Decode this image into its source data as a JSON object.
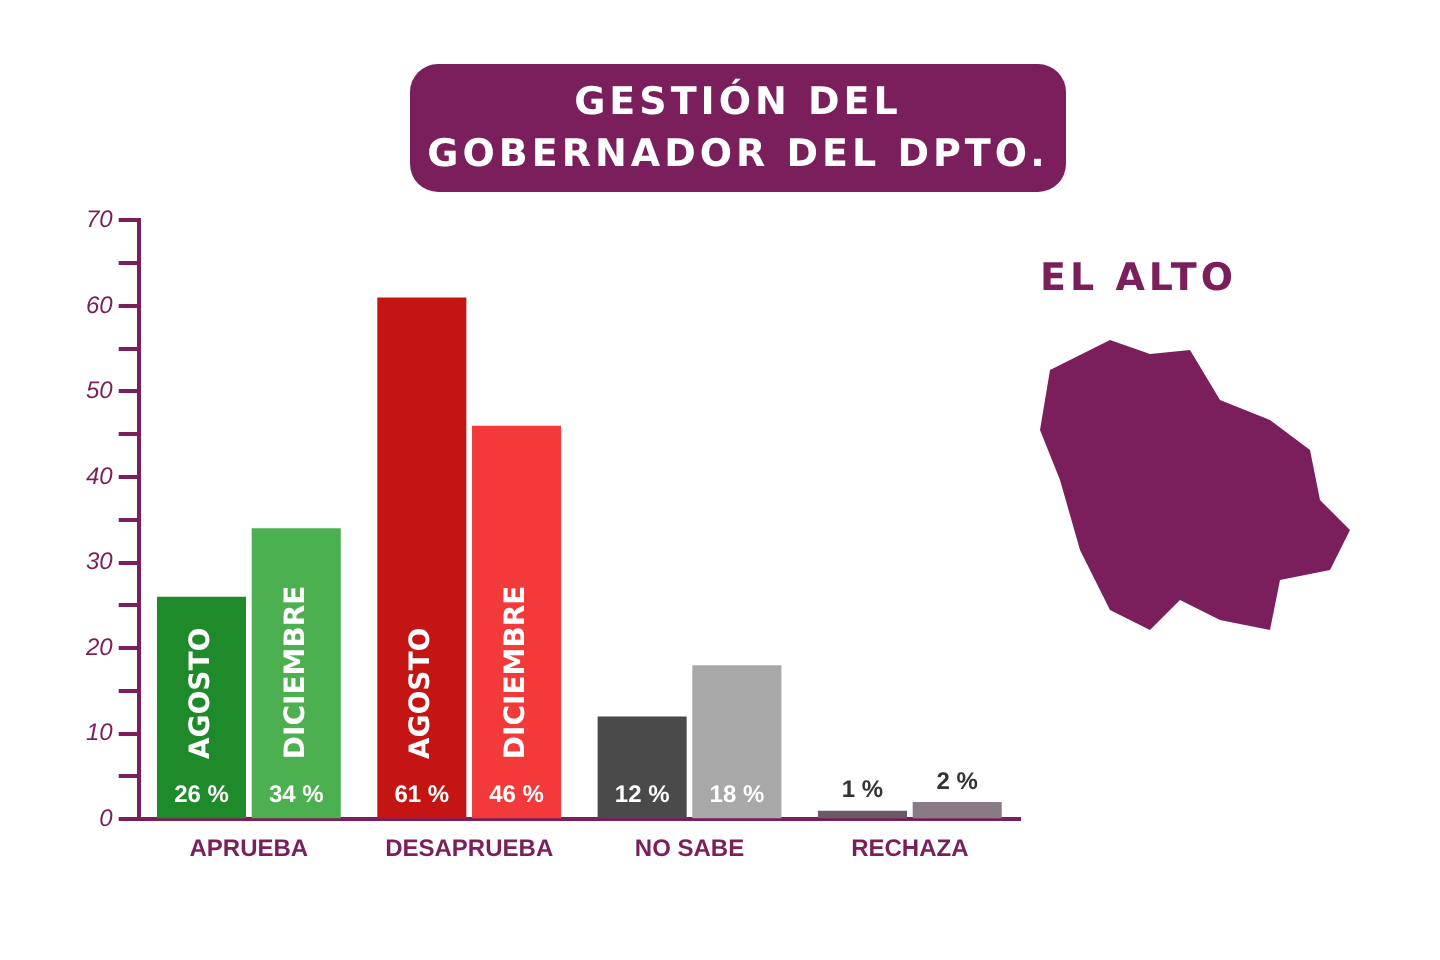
{
  "chart_data": {
    "type": "bar",
    "title": "GESTIÓN DEL GOBERNADOR DEL DPTO.",
    "annotations": [
      "EL ALTO"
    ],
    "categories": [
      "APRUEBA",
      "DESAPRUEBA",
      "NO SABE",
      "RECHAZA"
    ],
    "series": [
      {
        "name": "AGOSTO",
        "colors": [
          "#1e8a2a",
          "#c41414",
          "#4a4a4a",
          "#6a5a66"
        ],
        "values": [
          26,
          61,
          12,
          1
        ],
        "value_labels": [
          "26 %",
          "61 %",
          "12 %",
          "1 %"
        ]
      },
      {
        "name": "DICIEMBRE",
        "colors": [
          "#4caf50",
          "#f23a3a",
          "#a8a8a8",
          "#8a7a86"
        ],
        "values": [
          34,
          46,
          18,
          2
        ],
        "value_labels": [
          "34 %",
          "46 %",
          "18 %",
          "2 %"
        ]
      }
    ],
    "ylim": [
      0,
      70
    ],
    "yticks": [
      0,
      {
        "value": 5,
        "label": null
      },
      10,
      {
        "value": 15,
        "label": null
      },
      20,
      {
        "value": 25,
        "label": null
      },
      30,
      {
        "value": 35,
        "label": null
      },
      40,
      {
        "value": 45,
        "label": null
      },
      50,
      {
        "value": 55,
        "label": null
      },
      60,
      {
        "value": 65,
        "label": null
      },
      70
    ],
    "grid": false,
    "legend": false
  }
}
